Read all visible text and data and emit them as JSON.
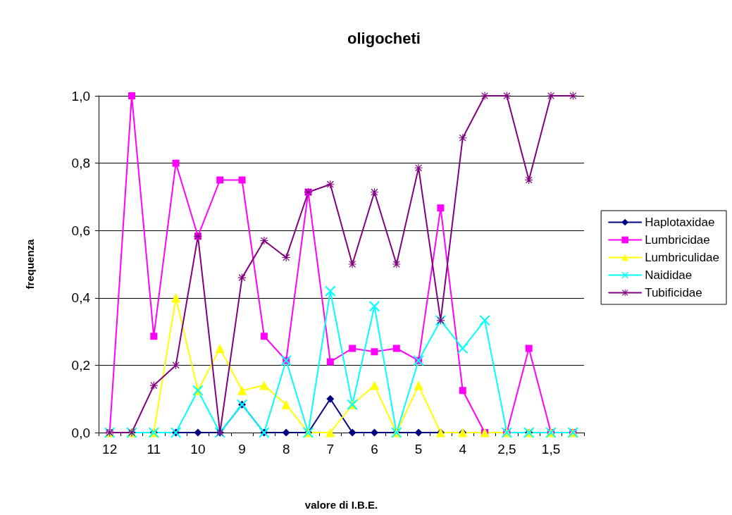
{
  "chart_data": {
    "type": "line",
    "title": "oligocheti",
    "xlabel": "valore di I.B.E.",
    "ylabel": "frequenza",
    "categories": [
      "12",
      null,
      "11",
      null,
      "10",
      null,
      "9",
      null,
      "8",
      null,
      "7",
      null,
      "6",
      null,
      "5",
      null,
      "4",
      null,
      "2,5",
      null,
      "1,5",
      null
    ],
    "ylim": [
      0,
      1
    ],
    "yticks": [
      {
        "value": 0,
        "label": "0,0"
      },
      {
        "value": 0.2,
        "label": "0,2"
      },
      {
        "value": 0.4,
        "label": "0,4"
      },
      {
        "value": 0.6,
        "label": "0,6"
      },
      {
        "value": 0.8,
        "label": "0,8"
      },
      {
        "value": 1,
        "label": "1,0"
      }
    ],
    "grid": "y",
    "legend": "right",
    "line_style": "solid",
    "series": [
      {
        "name": "Haplotaxidae",
        "color": "#000080",
        "marker": "diamond",
        "values": [
          0,
          0,
          0,
          0,
          0,
          0,
          0.083,
          0,
          0,
          0,
          0.1,
          0,
          0,
          0,
          0,
          0,
          0,
          0,
          0,
          0,
          0,
          0
        ]
      },
      {
        "name": "Lumbricidae",
        "color": "#ff00ff",
        "marker": "square",
        "values": [
          0,
          1.0,
          0.286,
          0.8,
          0.583,
          0.75,
          0.75,
          0.286,
          0.214,
          0.714,
          0.21,
          0.25,
          0.24,
          0.25,
          0.214,
          0.667,
          0.125,
          0,
          0,
          0.25,
          0,
          0
        ]
      },
      {
        "name": "Lumbriculidae",
        "color": "#ffff00",
        "marker": "triangle",
        "values": [
          0,
          0,
          0,
          0.4,
          0.125,
          0.25,
          0.125,
          0.14,
          0.083,
          0,
          0,
          0.083,
          0.14,
          0,
          0.14,
          0,
          0,
          0,
          0,
          0,
          0,
          0
        ]
      },
      {
        "name": "Naididae",
        "color": "#00ffff",
        "marker": "cross",
        "values": [
          0,
          0,
          0,
          0,
          0.125,
          0,
          0.083,
          0,
          0.214,
          0,
          0.42,
          0.083,
          0.375,
          0,
          0.214,
          0.333,
          0.25,
          0.333,
          0,
          0,
          0,
          0
        ]
      },
      {
        "name": "Tubificidae",
        "color": "#800080",
        "marker": "star",
        "values": [
          0,
          0,
          0.14,
          0.2,
          0.583,
          0,
          0.46,
          0.57,
          0.52,
          0.714,
          0.737,
          0.5,
          0.714,
          0.5,
          0.786,
          0.333,
          0.875,
          1,
          1,
          0.75,
          1,
          1
        ]
      }
    ]
  }
}
